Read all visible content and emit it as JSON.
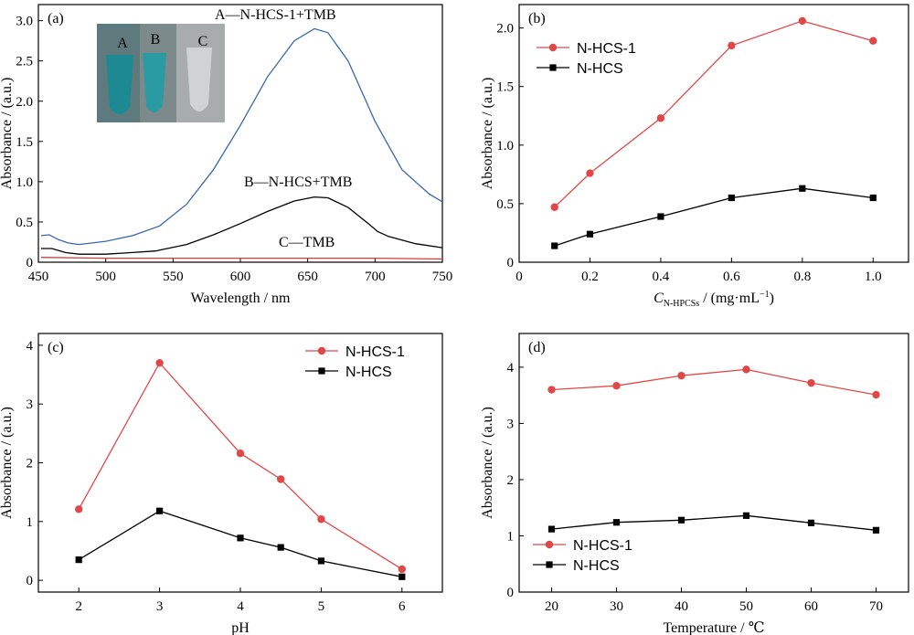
{
  "chart_data": [
    {
      "type": "line",
      "panel": "(a)",
      "xlabel": "Wavelength / nm",
      "ylabel": "Absorbance / (a.u.)",
      "xlim": [
        450,
        750
      ],
      "ylim": [
        0,
        3.2
      ],
      "xticks": [
        450,
        500,
        550,
        600,
        650,
        700,
        750
      ],
      "yticks": [
        0,
        0.5,
        1.0,
        1.5,
        2.0,
        2.5,
        3.0
      ],
      "ytick_labels": [
        "0",
        "0.5",
        "1.0",
        "1.5",
        "2.0",
        "2.5",
        "3.0"
      ],
      "series": [
        {
          "name": "A—N-HCS-1+TMB",
          "color": "#3a66b0",
          "x": [
            452,
            458,
            465,
            472,
            480,
            500,
            520,
            540,
            560,
            580,
            600,
            620,
            640,
            655,
            665,
            680,
            700,
            720,
            740,
            750
          ],
          "y": [
            0.33,
            0.34,
            0.28,
            0.24,
            0.22,
            0.26,
            0.33,
            0.45,
            0.72,
            1.15,
            1.7,
            2.3,
            2.75,
            2.9,
            2.85,
            2.5,
            1.75,
            1.15,
            0.85,
            0.75
          ]
        },
        {
          "name": "B—N-HCS+TMB",
          "color": "#000000",
          "x": [
            452,
            460,
            470,
            480,
            500,
            520,
            537,
            540,
            560,
            580,
            600,
            620,
            640,
            655,
            665,
            680,
            695,
            702,
            710,
            730,
            750
          ],
          "y": [
            0.17,
            0.17,
            0.12,
            0.1,
            0.1,
            0.12,
            0.14,
            0.15,
            0.22,
            0.34,
            0.48,
            0.63,
            0.76,
            0.81,
            0.8,
            0.68,
            0.48,
            0.38,
            0.32,
            0.23,
            0.18
          ]
        },
        {
          "name": "C—TMB",
          "color": "#d04040",
          "x": [
            452,
            500,
            550,
            600,
            650,
            700,
            750
          ],
          "y": [
            0.06,
            0.05,
            0.05,
            0.05,
            0.05,
            0.05,
            0.04
          ]
        }
      ],
      "annotations": [
        "A—N-HCS-1+TMB",
        "B—N-HCS+TMB",
        "C—TMB"
      ],
      "inset_labels": [
        "A",
        "B",
        "C"
      ]
    },
    {
      "type": "line",
      "panel": "(b)",
      "xlabel_main": "C",
      "xlabel_sub": "N-HPCSs",
      "xlabel_rest": " / (mg·mL",
      "xlabel_sup": "−1",
      "xlabel_end": ")",
      "ylabel": "Absorbance / (a.u.)",
      "xlim": [
        0,
        1.1
      ],
      "ylim": [
        0,
        2.2
      ],
      "xticks": [
        0,
        0.2,
        0.4,
        0.6,
        0.8,
        1.0
      ],
      "xtick_labels": [
        "0",
        "0.2",
        "0.4",
        "0.6",
        "0.8",
        "1.0"
      ],
      "yticks": [
        0,
        0.5,
        1.0,
        1.5,
        2.0
      ],
      "ytick_labels": [
        "0",
        "0.5",
        "1.0",
        "1.5",
        "2.0"
      ],
      "legend": "top-left",
      "series": [
        {
          "name": "N-HCS-1",
          "color": "#e04848",
          "marker": "circle",
          "x": [
            0.1,
            0.2,
            0.4,
            0.6,
            0.8,
            1.0
          ],
          "y": [
            0.47,
            0.76,
            1.23,
            1.85,
            2.06,
            1.89
          ]
        },
        {
          "name": "N-HCS",
          "color": "#000000",
          "marker": "square",
          "x": [
            0.1,
            0.2,
            0.4,
            0.6,
            0.8,
            1.0
          ],
          "y": [
            0.14,
            0.24,
            0.39,
            0.55,
            0.63,
            0.55
          ]
        }
      ]
    },
    {
      "type": "line",
      "panel": "(c)",
      "xlabel": "pH",
      "ylabel": "Absorbance / (a.u.)",
      "xlim": [
        1.5,
        6.5
      ],
      "ylim": [
        -0.2,
        4.2
      ],
      "xticks": [
        2,
        3,
        4,
        5,
        6
      ],
      "yticks": [
        0,
        1,
        2,
        3,
        4
      ],
      "legend": "top-right",
      "series": [
        {
          "name": "N-HCS-1",
          "color": "#e04848",
          "marker": "circle",
          "x": [
            2,
            3,
            4,
            4.5,
            5,
            6
          ],
          "y": [
            1.21,
            3.7,
            2.16,
            1.72,
            1.04,
            0.19
          ]
        },
        {
          "name": "N-HCS",
          "color": "#000000",
          "marker": "square",
          "x": [
            2,
            3,
            4,
            4.5,
            5,
            6
          ],
          "y": [
            0.35,
            1.18,
            0.72,
            0.56,
            0.33,
            0.06
          ]
        }
      ]
    },
    {
      "type": "line",
      "panel": "(d)",
      "xlabel": "Temperature / ℃",
      "ylabel": "Absorbance / (a.u.)",
      "xlim": [
        15,
        75
      ],
      "ylim": [
        0,
        4.6
      ],
      "xticks": [
        20,
        30,
        40,
        50,
        60,
        70
      ],
      "yticks": [
        0,
        1,
        2,
        3,
        4
      ],
      "legend": "bottom-left",
      "series": [
        {
          "name": "N-HCS-1",
          "color": "#e04848",
          "marker": "circle",
          "x": [
            20,
            30,
            40,
            50,
            60,
            70
          ],
          "y": [
            3.6,
            3.67,
            3.85,
            3.96,
            3.72,
            3.51
          ]
        },
        {
          "name": "N-HCS",
          "color": "#000000",
          "marker": "square",
          "x": [
            20,
            30,
            40,
            50,
            60,
            70
          ],
          "y": [
            1.12,
            1.24,
            1.28,
            1.36,
            1.23,
            1.1
          ]
        }
      ]
    }
  ]
}
